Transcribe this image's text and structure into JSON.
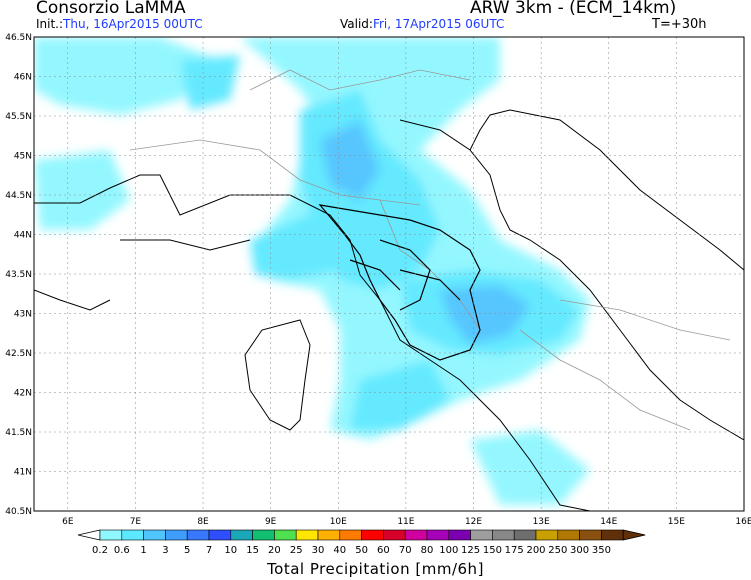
{
  "header": {
    "organization": "Consorzio LaMMA",
    "model": "ARW 3km - (ECM_14km)",
    "init_label": "Init.:",
    "init_value": "Thu, 16Apr2015 00UTC",
    "valid_label": "Valid:",
    "valid_value": "Fri, 17Apr2015 06UTC",
    "forecast_step": "T=+30h"
  },
  "map": {
    "lat_labels": [
      "46.5N",
      "46N",
      "45.5N",
      "45N",
      "44.5N",
      "44N",
      "43.5N",
      "43N",
      "42.5N",
      "42N",
      "41.5N",
      "41N",
      "40.5N"
    ],
    "lon_labels": [
      "6E",
      "7E",
      "8E",
      "9E",
      "10E",
      "11E",
      "12E",
      "13E",
      "14E",
      "15E",
      "16E"
    ],
    "lat_range": [
      40.5,
      46.5
    ],
    "lon_range": [
      5.5,
      16
    ],
    "grid": "dotted",
    "colors": {
      "sea_border": "#000000",
      "region_border": "#999999"
    }
  },
  "colorbar": {
    "title": "Total Precipitation [mm/6h]",
    "thresholds": [
      "0.2",
      "0.6",
      "1",
      "3",
      "5",
      "7",
      "10",
      "15",
      "20",
      "25",
      "30",
      "40",
      "50",
      "60",
      "70",
      "80",
      "100",
      "125",
      "150",
      "175",
      "200",
      "250",
      "300",
      "350"
    ],
    "colors": [
      "#8ff7ff",
      "#5ce8ff",
      "#4fc4ff",
      "#3f9dff",
      "#3878ff",
      "#2e4fff",
      "#1aa8b8",
      "#10c070",
      "#4ee04e",
      "#ffe600",
      "#ffb000",
      "#ff7b00",
      "#ff0000",
      "#d8002a",
      "#d000a0",
      "#a600b8",
      "#7a00b0",
      "#9e9e9e",
      "#888888",
      "#6e6e6e",
      "#c8a000",
      "#b07800",
      "#8a5010",
      "#60300a"
    ]
  }
}
